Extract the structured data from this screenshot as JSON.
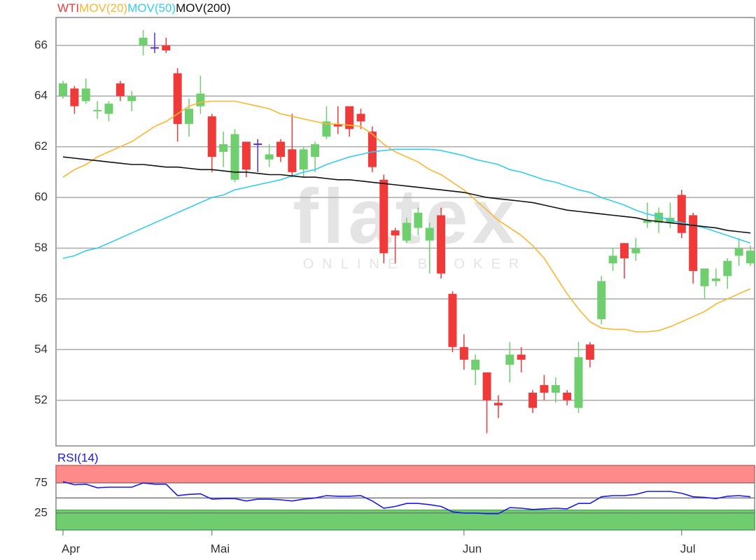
{
  "chart_data": [
    {
      "type": "candlestick",
      "watermark": "flatex",
      "watermark_sub": "ONLINE BROKER",
      "ylim": [
        50.2,
        67.1
      ],
      "yticks": [
        52,
        54,
        56,
        58,
        60,
        62,
        64,
        66
      ],
      "grid": true,
      "series": [
        {
          "name": "WTI",
          "type": "candlestick",
          "color": "#f03a3a",
          "up_color": "#6fcf6f",
          "doji_color": "#5530d0",
          "open": [
            64.0,
            64.3,
            63.8,
            63.4,
            63.3,
            64.5,
            63.8,
            66.0,
            65.9,
            66.0,
            64.9,
            62.9,
            63.6,
            63.2,
            61.8,
            60.7,
            62.2,
            62.1,
            61.5,
            62.2,
            61.9,
            61.1,
            61.6,
            62.4,
            62.9,
            63.6,
            63.3,
            62.6,
            60.7,
            58.7,
            58.3,
            58.8,
            58.3,
            59.3,
            56.2,
            54.1,
            53.2,
            53.1,
            51.9,
            53.4,
            53.8,
            52.3,
            52.6,
            52.3,
            52.3,
            51.7,
            54.2,
            55.2,
            57.4,
            58.2,
            57.8,
            59.0,
            59.0,
            59.0,
            60.1,
            59.3,
            56.5,
            56.7,
            56.9,
            57.7,
            57.4
          ],
          "high": [
            64.6,
            64.4,
            64.7,
            63.8,
            63.8,
            64.6,
            64.2,
            66.6,
            66.5,
            66.3,
            65.1,
            63.9,
            64.8,
            63.3,
            62.6,
            62.7,
            62.2,
            62.3,
            62.1,
            62.3,
            63.3,
            62.0,
            62.2,
            63.6,
            63.6,
            63.6,
            63.5,
            62.8,
            60.9,
            58.8,
            59.2,
            59.6,
            59.0,
            59.6,
            56.3,
            54.6,
            53.8,
            53.1,
            52.2,
            54.3,
            54.1,
            52.4,
            53.0,
            52.9,
            52.4,
            54.3,
            54.3,
            56.9,
            58.0,
            58.2,
            58.4,
            59.8,
            59.6,
            59.8,
            60.3,
            59.4,
            57.2,
            57.2,
            57.6,
            58.4,
            58.1
          ],
          "low": [
            63.9,
            63.3,
            63.7,
            63.1,
            63.0,
            63.8,
            63.4,
            65.6,
            65.7,
            65.7,
            62.2,
            62.4,
            63.3,
            61.0,
            61.2,
            60.6,
            60.8,
            61.0,
            61.2,
            61.4,
            60.8,
            60.8,
            61.0,
            62.3,
            62.5,
            62.4,
            62.7,
            61.0,
            57.4,
            57.4,
            58.2,
            58.5,
            57.0,
            56.8,
            53.9,
            53.2,
            52.6,
            50.7,
            51.3,
            52.7,
            53.1,
            51.5,
            52.0,
            51.9,
            51.8,
            51.5,
            53.3,
            55.0,
            57.1,
            56.8,
            57.5,
            58.8,
            58.6,
            58.8,
            58.4,
            56.6,
            56.0,
            56.5,
            56.4,
            57.3,
            57.3
          ],
          "close": [
            64.5,
            63.6,
            64.3,
            63.45,
            63.7,
            64.0,
            64.0,
            66.3,
            65.9,
            65.8,
            62.9,
            63.5,
            64.1,
            61.6,
            62.1,
            62.5,
            61.1,
            62.1,
            61.7,
            61.6,
            61.0,
            61.9,
            62.1,
            63.0,
            62.8,
            62.7,
            63.0,
            61.2,
            57.8,
            58.5,
            59.0,
            59.4,
            58.8,
            57.0,
            54.1,
            53.6,
            53.6,
            52.0,
            51.8,
            53.8,
            53.6,
            51.7,
            52.3,
            52.6,
            52.0,
            53.7,
            53.6,
            56.7,
            57.7,
            57.6,
            58.0,
            59.1,
            59.4,
            59.2,
            58.6,
            57.1,
            57.2,
            56.8,
            57.5,
            58.0,
            57.9
          ]
        },
        {
          "name": "MOV(20)",
          "type": "line",
          "color": "#ffb52e",
          "values": [
            60.8,
            61.1,
            61.3,
            61.6,
            61.8,
            62.0,
            62.2,
            62.5,
            62.8,
            63.0,
            63.3,
            63.6,
            63.75,
            63.8,
            63.8,
            63.8,
            63.7,
            63.6,
            63.5,
            63.3,
            63.2,
            63.1,
            63.0,
            62.9,
            62.9,
            62.85,
            62.8,
            62.5,
            62.1,
            61.8,
            61.6,
            61.4,
            61.1,
            60.9,
            60.6,
            60.3,
            59.9,
            59.5,
            59.1,
            58.8,
            58.5,
            58.1,
            57.6,
            56.9,
            56.2,
            55.6,
            55.1,
            54.85,
            54.8,
            54.8,
            54.7,
            54.7,
            54.75,
            54.9,
            55.1,
            55.3,
            55.5,
            55.8,
            56.0,
            56.2,
            56.4
          ]
        },
        {
          "name": "MOV(50)",
          "type": "line",
          "color": "#33ccf5",
          "values": [
            57.6,
            57.7,
            57.9,
            58.0,
            58.2,
            58.4,
            58.6,
            58.8,
            59.0,
            59.2,
            59.4,
            59.6,
            59.8,
            60.0,
            60.1,
            60.3,
            60.4,
            60.5,
            60.6,
            60.7,
            60.85,
            61.0,
            61.1,
            61.3,
            61.45,
            61.6,
            61.7,
            61.8,
            61.85,
            61.9,
            61.9,
            61.9,
            61.9,
            61.85,
            61.75,
            61.65,
            61.5,
            61.4,
            61.3,
            61.1,
            61.0,
            60.85,
            60.7,
            60.6,
            60.45,
            60.3,
            60.2,
            60.0,
            59.85,
            59.7,
            59.5,
            59.35,
            59.25,
            59.1,
            59.0,
            58.9,
            58.8,
            58.65,
            58.5,
            58.35,
            58.2
          ]
        },
        {
          "name": "MOV(200)",
          "type": "line",
          "color": "#111111",
          "values": [
            61.6,
            61.55,
            61.5,
            61.45,
            61.4,
            61.35,
            61.3,
            61.3,
            61.25,
            61.2,
            61.2,
            61.15,
            61.1,
            61.1,
            61.05,
            61.0,
            61.0,
            60.95,
            60.9,
            60.9,
            60.85,
            60.8,
            60.8,
            60.75,
            60.7,
            60.7,
            60.65,
            60.6,
            60.55,
            60.5,
            60.45,
            60.4,
            60.35,
            60.3,
            60.25,
            60.2,
            60.1,
            60.0,
            59.95,
            59.9,
            59.85,
            59.8,
            59.7,
            59.6,
            59.5,
            59.45,
            59.4,
            59.35,
            59.3,
            59.25,
            59.2,
            59.1,
            59.05,
            59.0,
            58.95,
            58.9,
            58.85,
            58.8,
            58.7,
            58.65,
            58.6
          ]
        }
      ]
    },
    {
      "type": "line",
      "title": "RSI(14)",
      "categories": [
        "Apr",
        null,
        null,
        null,
        null,
        null,
        null,
        null,
        null,
        null,
        null,
        null,
        null,
        "Mai",
        null,
        null,
        null,
        null,
        null,
        null,
        null,
        null,
        null,
        null,
        null,
        null,
        null,
        null,
        null,
        null,
        null,
        null,
        null,
        null,
        null,
        "Jun",
        null,
        null,
        null,
        null,
        null,
        null,
        null,
        null,
        null,
        null,
        null,
        null,
        null,
        null,
        null,
        null,
        null,
        null,
        "Jul",
        null,
        null,
        null,
        null,
        null,
        null
      ],
      "ylim": [
        -3,
        104
      ],
      "yticks": [
        75,
        25
      ],
      "midline": 50,
      "overbought": 75,
      "overbought_color": "#ff8a8a",
      "oversold": 30,
      "oversold_color": "#6fcc6f",
      "series": [
        {
          "color": "#1a1aee",
          "values": [
            77,
            72,
            73,
            67,
            68,
            68,
            68,
            75,
            73,
            73,
            54,
            56,
            57,
            48,
            49,
            49,
            45,
            48,
            48,
            47,
            45,
            48,
            50,
            54,
            53,
            53,
            54,
            45,
            33,
            36,
            41,
            41,
            39,
            36,
            27,
            25,
            25,
            24,
            24,
            34,
            33,
            31,
            32,
            33,
            32,
            41,
            41,
            52,
            54,
            54,
            56,
            61,
            61,
            61,
            58,
            52,
            51,
            49,
            53,
            54,
            52
          ]
        }
      ]
    }
  ]
}
